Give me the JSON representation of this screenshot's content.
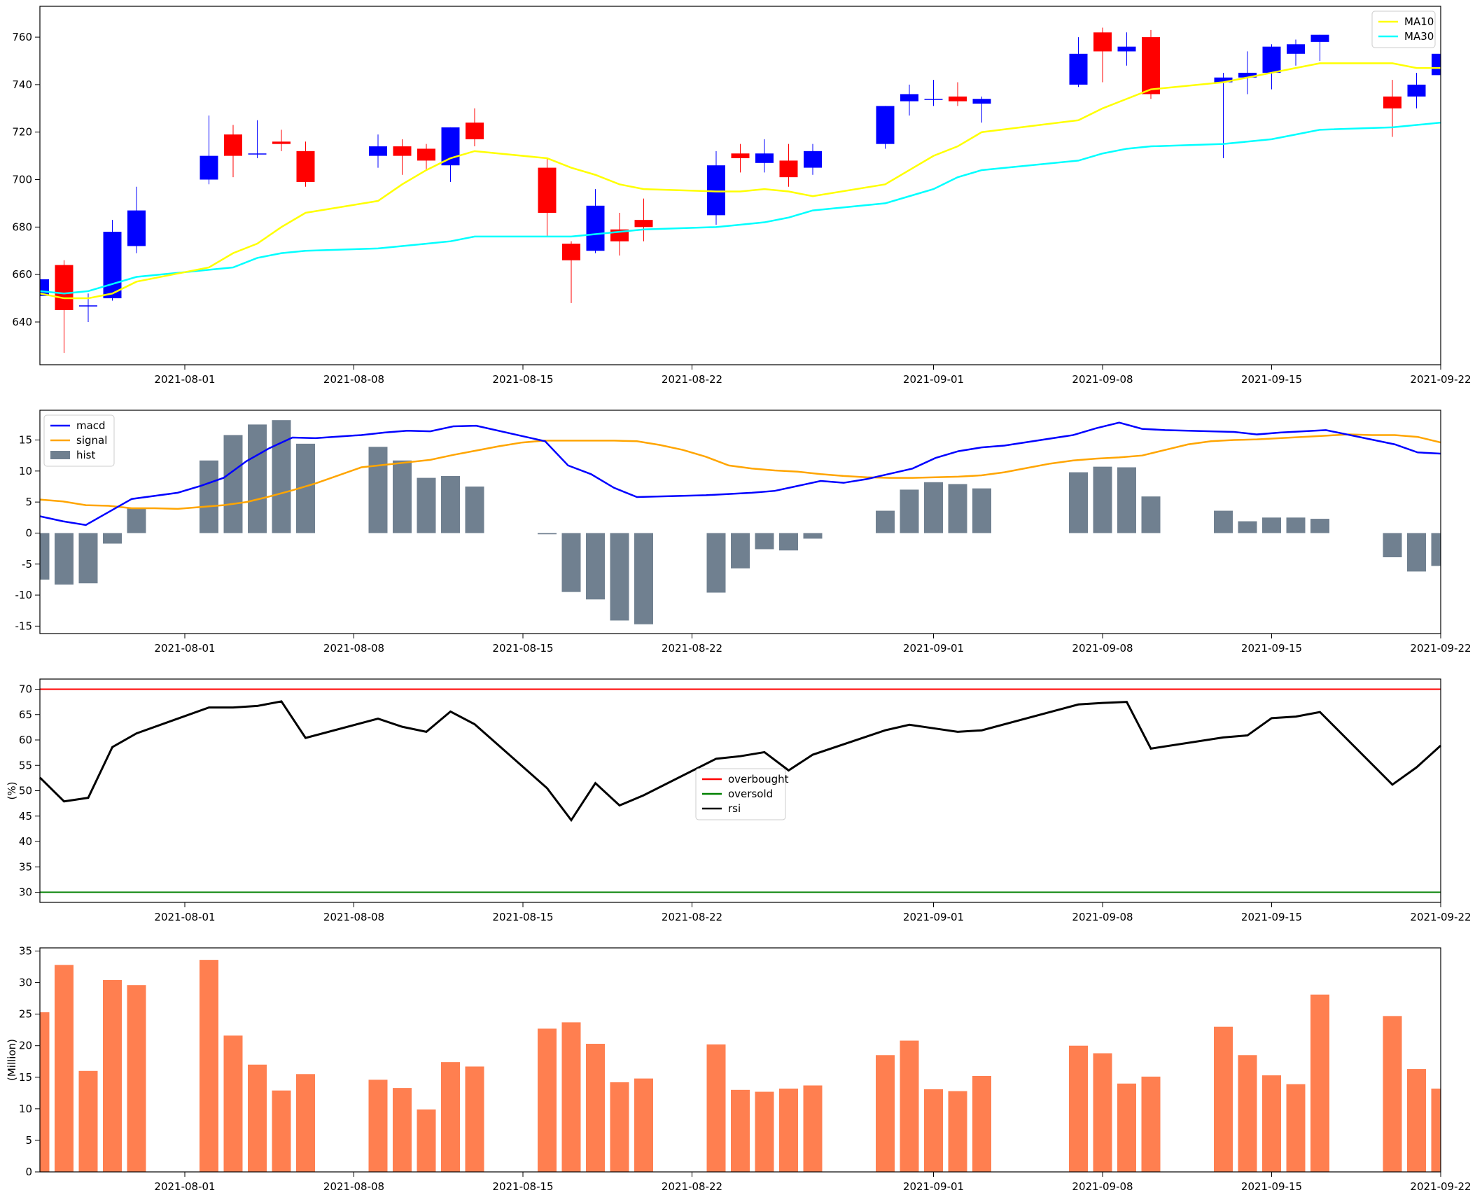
{
  "chart_data": [
    {
      "type": "candlestick",
      "panel": "price",
      "ylim": [
        622,
        773
      ],
      "yticks": [
        640,
        660,
        680,
        700,
        720,
        740,
        760
      ],
      "colors": {
        "up": "#0000ff",
        "down": "#ff0000",
        "ma10": "#ffff00",
        "ma30": "#00ffff"
      },
      "legend": {
        "placement": "upper-right",
        "entries": [
          {
            "label": "MA10",
            "color": "#ffff00"
          },
          {
            "label": "MA30",
            "color": "#00ffff"
          }
        ]
      },
      "candles": [
        {
          "date": "2021-07-26",
          "open": 651,
          "high": 657,
          "low": 647,
          "close": 658
        },
        {
          "date": "2021-07-27",
          "open": 664,
          "high": 666,
          "low": 627,
          "close": 645
        },
        {
          "date": "2021-07-28",
          "open": 647,
          "high": 652,
          "low": 640,
          "close": 647
        },
        {
          "date": "2021-07-29",
          "open": 650,
          "high": 683,
          "low": 649,
          "close": 678
        },
        {
          "date": "2021-07-30",
          "open": 672,
          "high": 697,
          "low": 669,
          "close": 687
        },
        {
          "date": "2021-08-02",
          "open": 700,
          "high": 727,
          "low": 698,
          "close": 710
        },
        {
          "date": "2021-08-03",
          "open": 719,
          "high": 723,
          "low": 701,
          "close": 710
        },
        {
          "date": "2021-08-04",
          "open": 711,
          "high": 725,
          "low": 709,
          "close": 711
        },
        {
          "date": "2021-08-05",
          "open": 716,
          "high": 721,
          "low": 712,
          "close": 715
        },
        {
          "date": "2021-08-06",
          "open": 712,
          "high": 716,
          "low": 697,
          "close": 699
        },
        {
          "date": "2021-08-09",
          "open": 710,
          "high": 719,
          "low": 705,
          "close": 714
        },
        {
          "date": "2021-08-10",
          "open": 714,
          "high": 717,
          "low": 702,
          "close": 710
        },
        {
          "date": "2021-08-11",
          "open": 713,
          "high": 715,
          "low": 704,
          "close": 708
        },
        {
          "date": "2021-08-12",
          "open": 706,
          "high": 722,
          "low": 699,
          "close": 722
        },
        {
          "date": "2021-08-13",
          "open": 724,
          "high": 730,
          "low": 714,
          "close": 717
        },
        {
          "date": "2021-08-16",
          "open": 705,
          "high": 709,
          "low": 676,
          "close": 686
        },
        {
          "date": "2021-08-17",
          "open": 673,
          "high": 674,
          "low": 648,
          "close": 666
        },
        {
          "date": "2021-08-18",
          "open": 670,
          "high": 696,
          "low": 669,
          "close": 689
        },
        {
          "date": "2021-08-19",
          "open": 679,
          "high": 686,
          "low": 668,
          "close": 674
        },
        {
          "date": "2021-08-20",
          "open": 683,
          "high": 692,
          "low": 674,
          "close": 680
        },
        {
          "date": "2021-08-23",
          "open": 685,
          "high": 712,
          "low": 681,
          "close": 706
        },
        {
          "date": "2021-08-24",
          "open": 711,
          "high": 715,
          "low": 703,
          "close": 709
        },
        {
          "date": "2021-08-25",
          "open": 707,
          "high": 717,
          "low": 703,
          "close": 711
        },
        {
          "date": "2021-08-26",
          "open": 708,
          "high": 715,
          "low": 697,
          "close": 701
        },
        {
          "date": "2021-08-27",
          "open": 705,
          "high": 715,
          "low": 702,
          "close": 712
        },
        {
          "date": "2021-08-30",
          "open": 715,
          "high": 731,
          "low": 713,
          "close": 731
        },
        {
          "date": "2021-08-31",
          "open": 733,
          "high": 740,
          "low": 727,
          "close": 736
        },
        {
          "date": "2021-09-01",
          "open": 734,
          "high": 742,
          "low": 731,
          "close": 734
        },
        {
          "date": "2021-09-02",
          "open": 735,
          "high": 741,
          "low": 731,
          "close": 733
        },
        {
          "date": "2021-09-03",
          "open": 732,
          "high": 735,
          "low": 724,
          "close": 734
        },
        {
          "date": "2021-09-07",
          "open": 740,
          "high": 760,
          "low": 739,
          "close": 753
        },
        {
          "date": "2021-09-08",
          "open": 762,
          "high": 764,
          "low": 741,
          "close": 754
        },
        {
          "date": "2021-09-09",
          "open": 754,
          "high": 762,
          "low": 748,
          "close": 756
        },
        {
          "date": "2021-09-10",
          "open": 760,
          "high": 763,
          "low": 734,
          "close": 736
        },
        {
          "date": "2021-09-13",
          "open": 741,
          "high": 745,
          "low": 709,
          "close": 743
        },
        {
          "date": "2021-09-14",
          "open": 743,
          "high": 754,
          "low": 736,
          "close": 745
        },
        {
          "date": "2021-09-15",
          "open": 745,
          "high": 757,
          "low": 738,
          "close": 756
        },
        {
          "date": "2021-09-16",
          "open": 753,
          "high": 759,
          "low": 748,
          "close": 757
        },
        {
          "date": "2021-09-17",
          "open": 758,
          "high": 761,
          "low": 750,
          "close": 761
        },
        {
          "date": "2021-09-20",
          "open": 735,
          "high": 742,
          "low": 718,
          "close": 730
        },
        {
          "date": "2021-09-21",
          "open": 735,
          "high": 745,
          "low": 730,
          "close": 740
        },
        {
          "date": "2021-09-22",
          "open": 744,
          "high": 752,
          "low": 742,
          "close": 753
        }
      ],
      "ma10": [
        652,
        650,
        650,
        652,
        657,
        663,
        669,
        673,
        680,
        686,
        691,
        698,
        704,
        709,
        712,
        709,
        705,
        702,
        698,
        696,
        695,
        695,
        696,
        695,
        693,
        698,
        704,
        710,
        714,
        720,
        725,
        730,
        734,
        738,
        741,
        743,
        745,
        747,
        749,
        749,
        747,
        747
      ],
      "ma30": [
        653,
        652,
        653,
        656,
        659,
        662,
        663,
        667,
        669,
        670,
        671,
        672,
        673,
        674,
        676,
        676,
        676,
        677,
        678,
        679,
        680,
        681,
        682,
        684,
        687,
        690,
        693,
        696,
        701,
        704,
        708,
        711,
        713,
        714,
        715,
        716,
        717,
        719,
        721,
        722,
        723,
        724
      ]
    },
    {
      "type": "line+bar",
      "panel": "macd",
      "ylim": [
        -16.2,
        19.8
      ],
      "yticks": [
        -15,
        -10,
        -5,
        0,
        5,
        10,
        15
      ],
      "legend": {
        "placement": "upper-left",
        "entries": [
          {
            "label": "macd",
            "color": "#0000ff",
            "kind": "line"
          },
          {
            "label": "signal",
            "color": "#ffa500",
            "kind": "line"
          },
          {
            "label": "hist",
            "color": "#708090",
            "kind": "bar"
          }
        ]
      },
      "macd": [
        2.7,
        1.9,
        1.3,
        3.4,
        5.5,
        6.5,
        7.6,
        8.9,
        11.6,
        13.7,
        15.4,
        15.3,
        15.8,
        16.2,
        16.5,
        16.4,
        17.2,
        17.3,
        14.8,
        10.9,
        9.5,
        7.3,
        5.8,
        6.1,
        6.5,
        6.8,
        7.6,
        8.4,
        8.1,
        8.7,
        10.4,
        12.1,
        13.2,
        13.8,
        14.1,
        15.8,
        16.9,
        17.8,
        16.8,
        16.6,
        16.3,
        15.9,
        16.2,
        16.4,
        16.6,
        14.3,
        13.0,
        12.8
      ],
      "signal": [
        5.4,
        5.1,
        4.5,
        4.4,
        4.0,
        4.0,
        3.9,
        4.2,
        4.5,
        5.0,
        5.9,
        6.9,
        8.0,
        9.3,
        10.6,
        11.0,
        11.4,
        11.8,
        12.6,
        13.3,
        14.0,
        14.6,
        14.9,
        14.9,
        14.9,
        14.9,
        14.8,
        14.2,
        13.4,
        12.3,
        10.9,
        10.4,
        10.1,
        9.9,
        9.5,
        9.2,
        9.0,
        8.9,
        8.9,
        9.0,
        9.1,
        9.3,
        9.8,
        10.5,
        11.2,
        11.7,
        12.0,
        12.2,
        12.5,
        13.4,
        14.3,
        14.8,
        15.0,
        15.1,
        15.3,
        15.5,
        15.7,
        15.9,
        15.8,
        15.8,
        15.5,
        14.6
      ],
      "macd_x": [
        0,
        1,
        2,
        3,
        4,
        6,
        7,
        8,
        9,
        10,
        11,
        12,
        14,
        15,
        16,
        17,
        18,
        19,
        22,
        23,
        24,
        25,
        26,
        29,
        31,
        32,
        33,
        34,
        35,
        36,
        38,
        39,
        40,
        41,
        42,
        45,
        46,
        47,
        48,
        49,
        52,
        53,
        54,
        55,
        56,
        59,
        60,
        61
      ],
      "signal_x": [
        0,
        1,
        2,
        3,
        4,
        5,
        6,
        7,
        8,
        9,
        10,
        11,
        12,
        13,
        14,
        15,
        16,
        17,
        18,
        19,
        20,
        21,
        22,
        23,
        24,
        25,
        26,
        27,
        28,
        29,
        30,
        31,
        32,
        33,
        34,
        35,
        36,
        37,
        38,
        39,
        40,
        41,
        42,
        43,
        44,
        45,
        46,
        47,
        48,
        49,
        50,
        51,
        52,
        53,
        54,
        55,
        56,
        57,
        58,
        59,
        60,
        61
      ],
      "hist_dates": [
        "2021-07-26",
        "2021-07-27",
        "2021-07-28",
        "2021-07-29",
        "2021-07-30",
        "2021-08-02",
        "2021-08-03",
        "2021-08-04",
        "2021-08-05",
        "2021-08-06",
        "2021-08-09",
        "2021-08-10",
        "2021-08-11",
        "2021-08-12",
        "2021-08-13",
        "2021-08-16",
        "2021-08-17",
        "2021-08-18",
        "2021-08-19",
        "2021-08-20",
        "2021-08-23",
        "2021-08-24",
        "2021-08-25",
        "2021-08-26",
        "2021-08-27",
        "2021-08-30",
        "2021-08-31",
        "2021-09-01",
        "2021-09-02",
        "2021-09-03",
        "2021-09-07",
        "2021-09-08",
        "2021-09-09",
        "2021-09-10",
        "2021-09-13",
        "2021-09-14",
        "2021-09-15",
        "2021-09-16",
        "2021-09-17",
        "2021-09-20",
        "2021-09-21",
        "2021-09-22"
      ],
      "hist": [
        -7.5,
        -8.3,
        -8.1,
        -1.7,
        4.0,
        11.7,
        15.8,
        17.5,
        18.2,
        14.4,
        13.9,
        11.7,
        8.9,
        9.2,
        7.5,
        -0.2,
        -9.5,
        -10.7,
        -14.1,
        -14.7,
        -9.6,
        -5.7,
        -2.6,
        -2.8,
        -0.9,
        3.6,
        7.0,
        8.2,
        7.9,
        7.2,
        9.8,
        10.7,
        10.6,
        5.9,
        3.6,
        1.9,
        2.5,
        2.5,
        2.3,
        -3.9,
        -6.2,
        -5.3
      ]
    },
    {
      "type": "line",
      "panel": "rsi",
      "ylabel": "(%)",
      "ylim": [
        28,
        72
      ],
      "yticks": [
        30,
        35,
        40,
        45,
        50,
        55,
        60,
        65,
        70
      ],
      "overbought": 70,
      "oversold": 30,
      "legend": {
        "placement": "center",
        "entries": [
          {
            "label": "overbought",
            "color": "#ff0000"
          },
          {
            "label": "oversold",
            "color": "#008000"
          },
          {
            "label": "rsi",
            "color": "#000000"
          }
        ]
      },
      "x": [
        0,
        1,
        2,
        3,
        4,
        7,
        8,
        9,
        10,
        11,
        14,
        15,
        16,
        17,
        18,
        21,
        22,
        23,
        24,
        25,
        28,
        29,
        30,
        31,
        32,
        35,
        36,
        37,
        38,
        39,
        43,
        44,
        45,
        46,
        49,
        50,
        51,
        52,
        53,
        56,
        57,
        58
      ],
      "rsi": [
        52.6,
        47.9,
        48.6,
        58.6,
        61.3,
        66.4,
        66.4,
        66.7,
        67.6,
        60.4,
        64.2,
        62.6,
        61.6,
        65.6,
        63.1,
        50.5,
        44.2,
        51.5,
        47.1,
        49.1,
        56.3,
        56.8,
        57.6,
        54.0,
        57.1,
        61.9,
        63.0,
        62.3,
        61.6,
        61.9,
        67.0,
        67.3,
        67.5,
        58.3,
        60.5,
        60.9,
        64.3,
        64.6,
        65.5,
        51.2,
        54.6,
        58.9
      ]
    },
    {
      "type": "bar",
      "panel": "volume",
      "ylabel": "(Million)",
      "ylim": [
        0,
        35.5
      ],
      "yticks": [
        0,
        5,
        10,
        15,
        20,
        25,
        30,
        35
      ],
      "color": "#ff7f50",
      "values": [
        25.3,
        32.8,
        16.0,
        30.4,
        29.6,
        33.6,
        21.6,
        17.0,
        12.9,
        15.5,
        14.6,
        13.3,
        9.9,
        17.4,
        16.7,
        22.7,
        23.7,
        20.3,
        14.2,
        14.8,
        20.2,
        13.0,
        12.7,
        13.2,
        13.7,
        18.5,
        20.8,
        13.1,
        12.8,
        15.2,
        20.0,
        18.8,
        14.0,
        15.1,
        23.0,
        18.5,
        15.3,
        13.9,
        28.1,
        24.7,
        16.3,
        13.2
      ]
    }
  ],
  "x_axis": {
    "start": "2021-07-26",
    "end": "2021-09-22",
    "ticks": [
      "2021-08-01",
      "2021-08-08",
      "2021-08-15",
      "2021-08-22",
      "2021-09-01",
      "2021-09-08",
      "2021-09-15",
      "2021-09-22"
    ]
  }
}
